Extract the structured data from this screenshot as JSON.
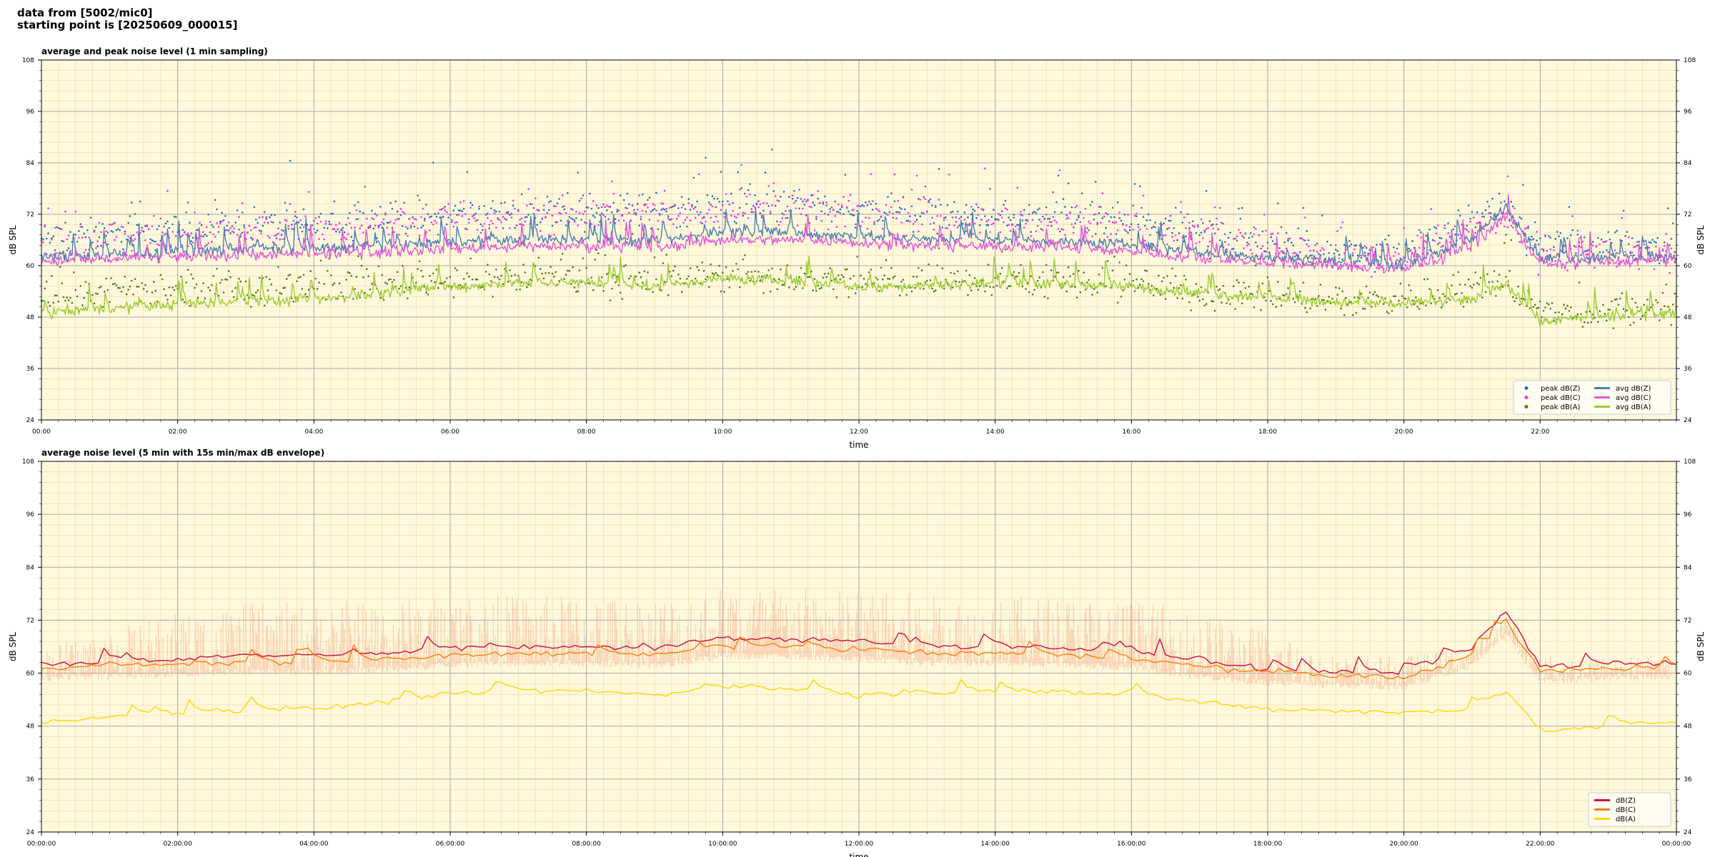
{
  "header": {
    "line1": "data from [5002/mic0]",
    "line2": "starting point is [20250609_000015]"
  },
  "chart_data": [
    {
      "type": "line",
      "title": "average and peak noise level (1 min sampling)",
      "xlabel": "time",
      "ylabel": "dB SPL",
      "ylim": [
        24,
        108
      ],
      "yticks": [
        24,
        36,
        48,
        60,
        72,
        84,
        96,
        108
      ],
      "xlim_hours": [
        0,
        24
      ],
      "xtick_labels": [
        "00:00",
        "02:00",
        "04:00",
        "06:00",
        "08:00",
        "10:00",
        "12:00",
        "14:00",
        "16:00",
        "18:00",
        "20:00",
        "22:00"
      ],
      "grid": true,
      "legend_position": "lower-right",
      "legend_ncol": 2,
      "background": "#fff8dc",
      "key_points_hours": [
        0,
        1,
        2,
        3,
        4,
        5,
        6,
        7,
        8,
        9,
        10,
        11,
        12,
        13,
        14,
        15,
        16,
        17,
        18,
        19,
        20,
        21,
        21.5,
        22,
        23,
        24
      ],
      "series": [
        {
          "name": "peak dB(Z)",
          "kind": "scatter",
          "color": "#1f77b4",
          "values": [
            66,
            67,
            68,
            70,
            69,
            71,
            72,
            72,
            73,
            73,
            74,
            74,
            73,
            72,
            71,
            71,
            70,
            68,
            66,
            63,
            63,
            70,
            72,
            65,
            65,
            65
          ]
        },
        {
          "name": "peak dB(C)",
          "kind": "scatter",
          "color": "#ff2af0",
          "values": [
            64,
            66,
            67,
            69,
            68,
            70,
            71,
            71,
            72,
            72,
            73,
            73,
            72,
            71,
            70,
            70,
            69,
            67,
            65,
            62,
            62,
            69,
            71,
            63,
            63,
            63
          ]
        },
        {
          "name": "peak dB(A)",
          "kind": "scatter",
          "color": "#4d7a1e",
          "values": [
            53,
            54,
            54,
            55,
            55,
            56,
            57,
            57,
            57,
            56,
            58,
            57,
            56,
            57,
            57,
            56,
            56,
            54,
            53,
            52,
            52,
            55,
            57,
            49,
            49,
            51
          ]
        },
        {
          "name": "avg dB(Z)",
          "kind": "line",
          "color": "#4a7fb0",
          "values": [
            62,
            62.5,
            63,
            64,
            64,
            64.5,
            65.5,
            66,
            66,
            65.5,
            68,
            67.5,
            67,
            66,
            66,
            65.5,
            65,
            63,
            62,
            61,
            60,
            66,
            74,
            61.5,
            62,
            62
          ]
        },
        {
          "name": "avg dB(C)",
          "kind": "line",
          "color": "#e057d8",
          "values": [
            61,
            61.5,
            62,
            62.5,
            62.5,
            63,
            64,
            64.5,
            64.5,
            64,
            66,
            66,
            65.5,
            64.5,
            64.5,
            64,
            63.5,
            61.5,
            60.5,
            60,
            59,
            64,
            72,
            60,
            61,
            61
          ]
        },
        {
          "name": "avg dB(A)",
          "kind": "line",
          "color": "#9acd32",
          "values": [
            49,
            50,
            51,
            51.5,
            52,
            53.5,
            55,
            56,
            56,
            55,
            57,
            56.5,
            55,
            55.5,
            56,
            55.5,
            55,
            53.5,
            52.5,
            51.5,
            51,
            52,
            56,
            47,
            48,
            49
          ]
        }
      ]
    },
    {
      "type": "line",
      "title": "average noise level (5 min with 15s min/max dB envelope)",
      "xlabel": "time",
      "ylabel": "dB SPL",
      "ylim": [
        24,
        108
      ],
      "yticks": [
        24,
        36,
        48,
        60,
        72,
        84,
        96,
        108
      ],
      "xlim_hours": [
        0,
        24
      ],
      "xtick_labels": [
        "00:00:00",
        "02:00:00",
        "04:00:00",
        "06:00:00",
        "08:00:00",
        "10:00:00",
        "12:00:00",
        "14:00:00",
        "16:00:00",
        "18:00:00",
        "20:00:00",
        "22:00:00",
        "00:00:00"
      ],
      "grid": true,
      "legend_position": "lower-right",
      "legend_ncol": 1,
      "background": "#fff8dc",
      "envelope": {
        "color": "#f4a582",
        "max_values": [
          66,
          70,
          74,
          76,
          76,
          77,
          78,
          78,
          78,
          78,
          80,
          80,
          79,
          78,
          77,
          78,
          77,
          74,
          70,
          64,
          64,
          66,
          74,
          64,
          64,
          64
        ]
      },
      "key_points_hours": [
        0,
        1,
        2,
        3,
        4,
        5,
        6,
        7,
        8,
        9,
        10,
        11,
        12,
        13,
        14,
        15,
        16,
        17,
        18,
        19,
        20,
        21,
        21.5,
        22,
        23,
        24
      ],
      "series": [
        {
          "name": "dB(Z)",
          "kind": "line",
          "color": "#cc1144",
          "values": [
            62,
            62.5,
            63,
            64,
            64,
            64.5,
            65.5,
            66,
            66,
            65.5,
            68,
            67.5,
            67.5,
            66,
            66,
            65.5,
            65,
            63,
            61,
            60,
            60,
            66,
            74,
            61.5,
            62,
            62.5
          ]
        },
        {
          "name": "dB(C)",
          "kind": "line",
          "color": "#ff7f0e",
          "values": [
            61,
            61.5,
            62,
            62.5,
            62.5,
            63,
            64,
            64.5,
            64.5,
            64,
            66,
            66,
            65.5,
            64.5,
            64.5,
            64,
            63.5,
            61.5,
            60,
            59.5,
            59,
            64,
            71,
            60.5,
            61,
            61.5
          ]
        },
        {
          "name": "dB(A)",
          "kind": "line",
          "color": "#ffd700",
          "values": [
            49,
            50,
            51,
            51.5,
            52,
            53.5,
            55,
            56,
            56,
            55,
            57,
            56.5,
            55,
            55.5,
            56,
            55.5,
            55,
            53.5,
            52,
            51.5,
            51,
            52,
            56,
            47,
            48,
            49
          ]
        }
      ]
    }
  ]
}
